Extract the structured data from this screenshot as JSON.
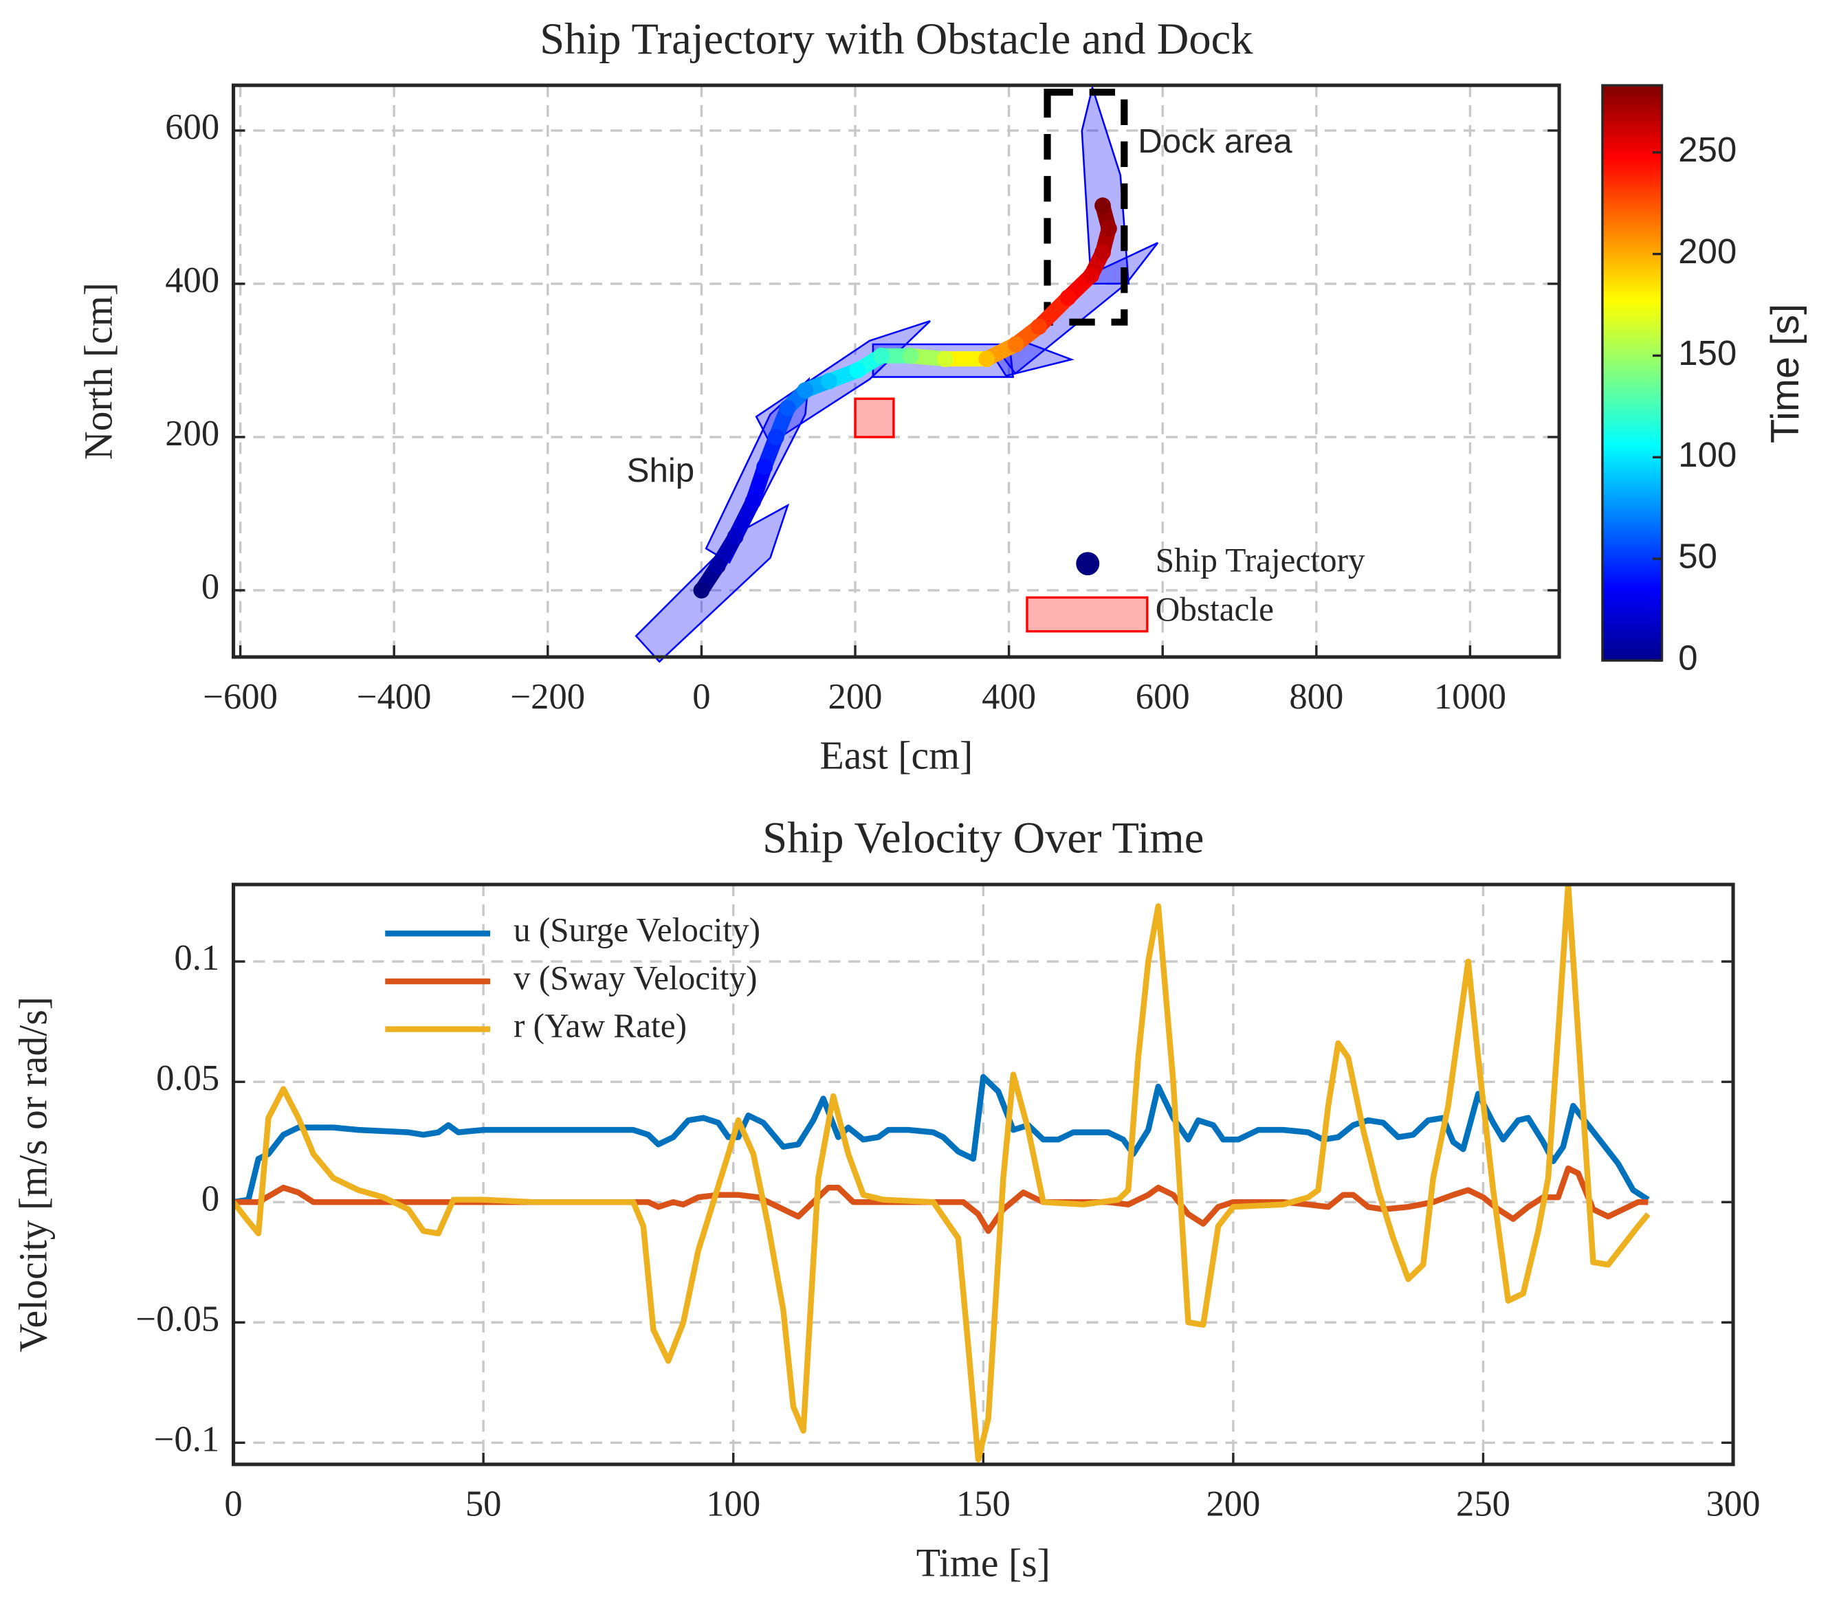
{
  "chart_data": [
    {
      "type": "scatter",
      "title": "Ship Trajectory with Obstacle and Dock",
      "xlabel": "East [cm]",
      "ylabel": "North [cm]",
      "xlim": [
        -609,
        1116
      ],
      "ylim": [
        -87,
        659
      ],
      "xticks": [
        {
          "value": -600,
          "label": "−600"
        },
        {
          "value": -400,
          "label": "−400"
        },
        {
          "value": -200,
          "label": "−200"
        },
        0,
        200,
        400,
        600,
        800,
        1000
      ],
      "yticks": [
        0,
        200,
        400,
        600
      ],
      "grid": true,
      "colormap": "jet",
      "series": [
        {
          "name": "Ship Trajectory",
          "color": "#000080",
          "x": [
            0,
            21,
            44,
            67,
            82,
            97,
            112,
            135,
            166,
            203,
            234,
            272,
            317,
            371,
            409,
            439,
            477,
            507,
            522,
            530,
            522
          ],
          "values": [
            0,
            32,
            70,
            116,
            161,
            200,
            238,
            261,
            273,
            287,
            306,
            306,
            302,
            302,
            321,
            344,
            382,
            411,
            441,
            472,
            502
          ],
          "time": [
            0,
            10,
            20,
            30,
            40,
            50,
            60,
            75,
            90,
            105,
            120,
            140,
            165,
            195,
            215,
            230,
            245,
            255,
            265,
            275,
            283
          ]
        }
      ],
      "obstacle": {
        "name": "Obstacle",
        "color": "#ff0000",
        "x": [
          200,
          250
        ],
        "y": [
          200,
          250
        ]
      },
      "dock": {
        "x": [
          450,
          550
        ],
        "y": [
          350,
          650
        ]
      },
      "annotations": [
        "Ship",
        "Dock area"
      ],
      "colorbar": {
        "label": "Time [s]",
        "lim": [
          0,
          283
        ],
        "ticks": [
          0,
          50,
          100,
          150,
          200,
          250
        ]
      }
    },
    {
      "type": "line",
      "title": "Ship Velocity Over Time",
      "xlabel": "Time [s]",
      "ylabel": "Velocity [m/s or rad/s]",
      "xlim": [
        0,
        300
      ],
      "ylim": [
        -0.109,
        0.132
      ],
      "xticks": [
        0,
        50,
        100,
        150,
        200,
        250,
        300
      ],
      "yticks": [
        {
          "value": -0.1,
          "label": "−0.1"
        },
        {
          "value": -0.05,
          "label": "−0.05"
        },
        0,
        0.05,
        0.1
      ],
      "grid": true,
      "series": [
        {
          "name": "u (Surge Velocity)",
          "color": "#0072bd",
          "x": [
            0,
            3,
            5,
            7,
            10,
            13,
            20,
            25,
            35,
            38,
            41,
            43,
            45,
            50,
            60,
            80,
            83,
            85,
            88,
            91,
            94,
            97,
            99,
            101,
            103,
            106,
            108,
            110,
            113,
            116,
            118,
            121,
            123,
            126,
            129,
            131,
            135,
            140,
            142,
            145,
            148,
            150,
            153,
            156,
            159,
            162,
            165,
            168,
            175,
            178,
            180,
            183,
            185,
            188,
            191,
            193,
            196,
            198,
            201,
            205,
            210,
            215,
            218,
            221,
            224,
            227,
            230,
            233,
            236,
            239,
            242,
            244,
            246,
            249,
            252,
            254,
            257,
            259,
            262,
            264,
            266,
            268,
            271,
            274,
            277,
            280,
            283
          ],
          "values": [
            0,
            0.001,
            0.018,
            0.02,
            0.028,
            0.031,
            0.031,
            0.03,
            0.029,
            0.028,
            0.029,
            0.032,
            0.029,
            0.03,
            0.03,
            0.03,
            0.028,
            0.024,
            0.027,
            0.034,
            0.035,
            0.033,
            0.027,
            0.027,
            0.036,
            0.033,
            0.028,
            0.023,
            0.024,
            0.034,
            0.043,
            0.027,
            0.031,
            0.026,
            0.027,
            0.03,
            0.03,
            0.029,
            0.027,
            0.021,
            0.018,
            0.052,
            0.046,
            0.03,
            0.032,
            0.026,
            0.026,
            0.029,
            0.029,
            0.026,
            0.02,
            0.03,
            0.048,
            0.035,
            0.026,
            0.034,
            0.032,
            0.026,
            0.026,
            0.03,
            0.03,
            0.029,
            0.026,
            0.027,
            0.032,
            0.034,
            0.033,
            0.027,
            0.028,
            0.034,
            0.035,
            0.025,
            0.022,
            0.045,
            0.033,
            0.026,
            0.034,
            0.035,
            0.025,
            0.017,
            0.023,
            0.04,
            0.032,
            0.024,
            0.016,
            0.005,
            0.001
          ]
        },
        {
          "name": "v (Sway Velocity)",
          "color": "#d95319",
          "x": [
            0,
            5,
            10,
            13,
            16,
            20,
            40,
            50,
            80,
            83,
            85,
            88,
            90,
            93,
            97,
            101,
            105,
            110,
            113,
            116,
            119,
            121,
            124,
            130,
            140,
            146,
            149,
            151,
            154,
            158,
            162,
            175,
            179,
            183,
            185,
            188,
            191,
            194,
            197,
            200,
            210,
            215,
            219,
            222,
            224,
            227,
            230,
            235,
            240,
            244,
            247,
            250,
            253,
            256,
            259,
            262,
            265,
            267,
            269,
            272,
            275,
            278,
            281,
            283
          ],
          "values": [
            0,
            0,
            0.006,
            0.004,
            0,
            0,
            0,
            0,
            0,
            0,
            -0.002,
            0,
            -0.001,
            0.002,
            0.003,
            0.003,
            0.002,
            -0.003,
            -0.006,
            0,
            0.006,
            0.006,
            0,
            0,
            0,
            0,
            -0.005,
            -0.012,
            -0.003,
            0.004,
            0,
            0,
            -0.001,
            0.003,
            0.006,
            0.003,
            -0.005,
            -0.009,
            -0.002,
            0,
            0,
            -0.001,
            -0.002,
            0.003,
            0.003,
            -0.002,
            -0.003,
            -0.002,
            0,
            0.003,
            0.005,
            0.002,
            -0.003,
            -0.007,
            -0.002,
            0.002,
            0.002,
            0.014,
            0.012,
            -0.003,
            -0.006,
            -0.003,
            0,
            0
          ]
        },
        {
          "name": "r (Yaw Rate)",
          "color": "#edb120",
          "x": [
            0,
            3,
            5,
            7,
            10,
            13,
            16,
            20,
            25,
            30,
            35,
            38,
            41,
            44,
            50,
            60,
            70,
            80,
            82,
            84,
            87,
            90,
            93,
            96,
            99,
            101,
            104,
            107,
            110,
            112,
            114,
            117,
            120,
            123,
            126,
            130,
            140,
            145,
            147,
            149,
            151,
            154,
            156,
            159,
            162,
            170,
            177,
            179,
            181,
            183,
            185,
            188,
            191,
            194,
            197,
            200,
            210,
            215,
            217,
            219,
            221,
            223,
            226,
            229,
            232,
            235,
            238,
            240,
            243,
            245,
            247,
            249,
            252,
            255,
            258,
            261,
            263,
            265,
            267,
            269,
            272,
            275,
            278,
            281,
            283
          ],
          "values": [
            0,
            -0.008,
            -0.013,
            0.035,
            0.047,
            0.035,
            0.02,
            0.01,
            0.005,
            0.002,
            -0.003,
            -0.012,
            -0.013,
            0.001,
            0.001,
            0,
            0,
            0,
            -0.01,
            -0.053,
            -0.066,
            -0.05,
            -0.02,
            0,
            0.02,
            0.034,
            0.02,
            -0.01,
            -0.045,
            -0.085,
            -0.095,
            0.01,
            0.044,
            0.02,
            0.003,
            0.001,
            0,
            -0.015,
            -0.06,
            -0.107,
            -0.09,
            0.01,
            0.053,
            0.03,
            0,
            -0.001,
            0.001,
            0.005,
            0.06,
            0.1,
            0.123,
            0.05,
            -0.05,
            -0.051,
            -0.01,
            -0.002,
            -0.001,
            0.002,
            0.005,
            0.04,
            0.066,
            0.06,
            0.03,
            0.005,
            -0.015,
            -0.032,
            -0.026,
            0.01,
            0.04,
            0.07,
            0.1,
            0.06,
            0.005,
            -0.041,
            -0.038,
            -0.012,
            0.01,
            0.07,
            0.132,
            0.07,
            -0.025,
            -0.026,
            -0.018,
            -0.01,
            -0.005
          ]
        }
      ]
    }
  ]
}
